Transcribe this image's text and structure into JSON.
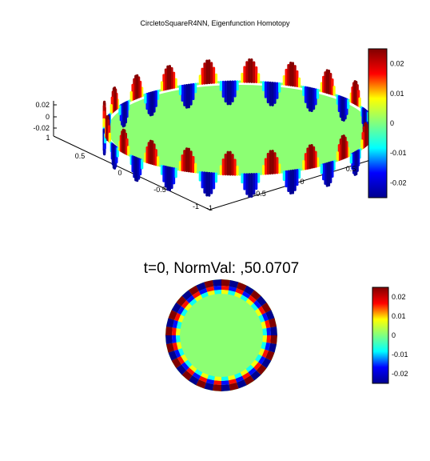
{
  "figure": {
    "title": "CircletoSquareR4NN, Eigenfunction Homotopy"
  },
  "colormap": {
    "name": "jet",
    "stops": [
      "#00008f",
      "#0000ff",
      "#00ffff",
      "#80ff80",
      "#ffff00",
      "#ff0000",
      "#800000"
    ]
  },
  "chart_data": [
    {
      "type": "surface",
      "title": "CircletoSquareR4NN, Eigenfunction Homotopy",
      "view": "3d",
      "lobes": 20,
      "xlim": [
        -1,
        1
      ],
      "ylim": [
        -1,
        1
      ],
      "zlim": [
        -0.02,
        0.02
      ],
      "clim": [
        -0.025,
        0.025
      ],
      "x_ticks": [
        "-1",
        "-0.5",
        "0",
        "0.5"
      ],
      "y_ticks": [
        "-1",
        "-0.5",
        "0",
        "0.5",
        "1"
      ],
      "z_ticks": [
        "0.02",
        "0",
        "-0.02"
      ],
      "colorbar_ticks": [
        "0.02",
        "0.01",
        "0",
        "-0.01",
        "-0.02"
      ],
      "colorbar_values": [
        0.02,
        0.01,
        0,
        -0.01,
        -0.02
      ]
    },
    {
      "type": "heatmap",
      "title": "t=0, NormVal: ,50.0707",
      "view": "2d",
      "lobes": 20,
      "clim": [
        -0.025,
        0.025
      ],
      "colorbar_ticks": [
        "0.02",
        "0.01",
        "0",
        "-0.01",
        "-0.02"
      ],
      "colorbar_values": [
        0.02,
        0.01,
        0,
        -0.01,
        -0.02
      ]
    }
  ]
}
